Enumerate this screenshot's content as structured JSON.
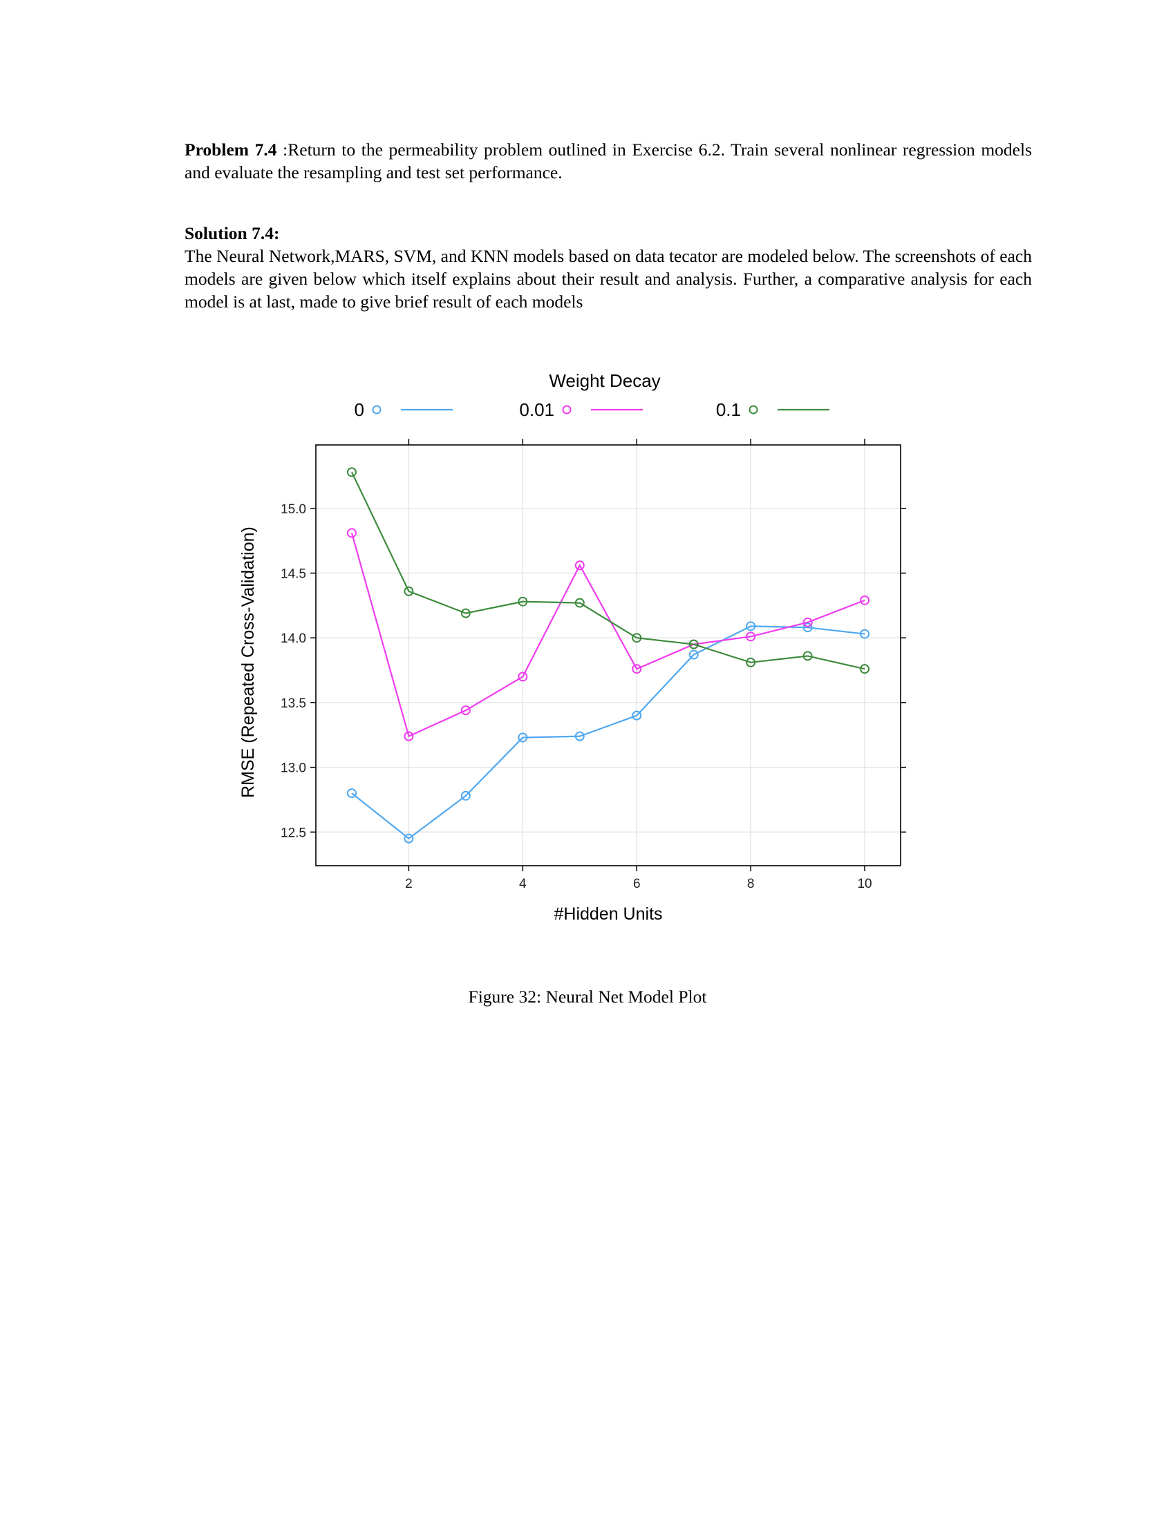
{
  "problem": {
    "label": "Problem 7.4",
    "text": " :Return to the permeability problem outlined in Exercise 6.2. Train several nonlinear regression models and evaluate the resampling and test set performance."
  },
  "solution": {
    "label": "Solution 7.4:",
    "text": "The Neural Network,MARS, SVM, and KNN models based on data tecator are modeled below. The screenshots of each models are given below which itself explains about their result and analysis. Further, a comparative analysis for each model is at last, made to give brief result of each models"
  },
  "figure": {
    "caption": "Figure 32: Neural Net Model Plot"
  },
  "chart_data": {
    "type": "line",
    "legend_title": "Weight Decay",
    "legend_position": "top",
    "xlabel": "#Hidden Units",
    "ylabel": "RMSE (Repeated Cross-Validation)",
    "xlim": [
      0.37,
      10.63
    ],
    "ylim": [
      12.24,
      15.49
    ],
    "x_ticks": [
      2,
      4,
      6,
      8,
      10
    ],
    "y_ticks": [
      12.5,
      13.0,
      13.5,
      14.0,
      14.5,
      15.0
    ],
    "y_tick_labels": [
      "12.5",
      "13.0",
      "13.5",
      "14.0",
      "14.5",
      "15.0"
    ],
    "grid": true,
    "x": [
      1,
      2,
      3,
      4,
      5,
      6,
      7,
      8,
      9,
      10
    ],
    "series": [
      {
        "name": "0",
        "color": "#4fa8f0",
        "values": [
          12.8,
          12.45,
          12.78,
          13.23,
          13.24,
          13.4,
          13.87,
          14.09,
          14.08,
          14.03
        ]
      },
      {
        "name": "0.01",
        "color": "#f03cf0",
        "values": [
          14.81,
          13.24,
          13.44,
          13.7,
          14.56,
          13.76,
          13.95,
          14.01,
          14.12,
          14.29
        ]
      },
      {
        "name": "0.1",
        "color": "#3d8b3d",
        "values": [
          15.28,
          14.36,
          14.19,
          14.28,
          14.27,
          14.0,
          13.95,
          13.81,
          13.86,
          13.76
        ]
      }
    ]
  }
}
